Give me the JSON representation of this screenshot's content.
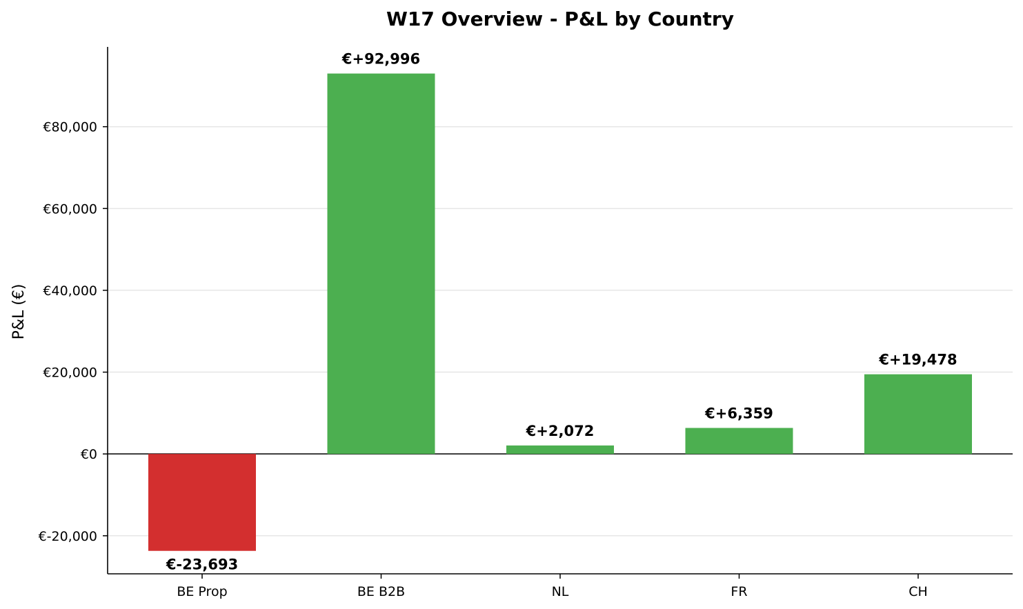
{
  "chart_data": {
    "type": "bar",
    "title": "W17 Overview - P&L by Country",
    "xlabel": "",
    "ylabel": "P&L (€)",
    "categories": [
      "BE Prop",
      "BE B2B",
      "NL",
      "FR",
      "CH"
    ],
    "values": [
      -23693,
      92996,
      2072,
      6359,
      19478
    ],
    "data_labels": [
      "€-23,693",
      "€+92,996",
      "€+2,072",
      "€+6,359",
      "€+19,478"
    ],
    "yticks": [
      -20000,
      0,
      20000,
      40000,
      60000,
      80000
    ],
    "ytick_labels": [
      "€-20,000",
      "€0",
      "€20,000",
      "€40,000",
      "€60,000",
      "€80,000"
    ],
    "ylim": [
      -29305,
      99505
    ],
    "grid": true,
    "colors": {
      "positive": "#4caf50",
      "negative": "#d32f2f",
      "grid": "#e6e6e6",
      "axis": "#000000"
    }
  }
}
